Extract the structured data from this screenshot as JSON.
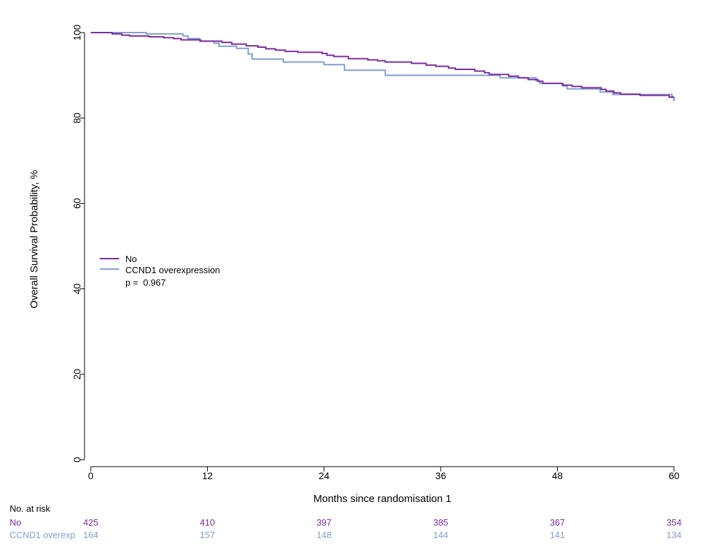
{
  "chart_data": {
    "type": "line",
    "subtype": "kaplan-meier",
    "title": "",
    "xlabel": "Months since randomisation 1",
    "ylabel": "Overall Survival Probability, %",
    "xlim": [
      0,
      60
    ],
    "ylim": [
      0,
      100
    ],
    "x_ticks": [
      "0",
      "12",
      "24",
      "36",
      "48",
      "60"
    ],
    "y_ticks": [
      "0",
      "20",
      "40",
      "60",
      "80",
      "100"
    ],
    "grid": false,
    "legend_position": "center-left",
    "p_value_text": "p =  0.967",
    "colors": {
      "no": "#7a2a9e",
      "ccnd1": "#7f9fcf"
    },
    "series": [
      {
        "name": "No",
        "color": "#7a2a9e",
        "points": [
          [
            0,
            100
          ],
          [
            2.2,
            99.7
          ],
          [
            3.2,
            99.4
          ],
          [
            4,
            99.2
          ],
          [
            6,
            99.0
          ],
          [
            7.5,
            98.8
          ],
          [
            8.5,
            98.6
          ],
          [
            9.3,
            98.3
          ],
          [
            11.3,
            98.0
          ],
          [
            13.5,
            97.7
          ],
          [
            14.5,
            97.3
          ],
          [
            16,
            96.9
          ],
          [
            17.2,
            96.6
          ],
          [
            18,
            96.2
          ],
          [
            19,
            95.9
          ],
          [
            20,
            95.6
          ],
          [
            21.3,
            95.4
          ],
          [
            23.8,
            95.1
          ],
          [
            24.3,
            94.7
          ],
          [
            25,
            94.4
          ],
          [
            26.5,
            93.9
          ],
          [
            28.5,
            93.6
          ],
          [
            29.5,
            93.4
          ],
          [
            30.3,
            93.1
          ],
          [
            33,
            92.8
          ],
          [
            34.5,
            92.4
          ],
          [
            35.5,
            92.1
          ],
          [
            36.8,
            91.7
          ],
          [
            37.5,
            91.4
          ],
          [
            39.5,
            91.0
          ],
          [
            40.5,
            90.6
          ],
          [
            41,
            90.2
          ],
          [
            43,
            89.8
          ],
          [
            44,
            89.4
          ],
          [
            45,
            89.0
          ],
          [
            46,
            88.6
          ],
          [
            46.5,
            88.1
          ],
          [
            48.5,
            87.7
          ],
          [
            49.5,
            87.4
          ],
          [
            50.5,
            87.1
          ],
          [
            52.5,
            86.7
          ],
          [
            53,
            86.3
          ],
          [
            53.8,
            85.9
          ],
          [
            54.5,
            85.6
          ],
          [
            56.5,
            85.3
          ],
          [
            59.5,
            84.9
          ],
          [
            60,
            84.9
          ]
        ],
        "at_risk": [
          "425",
          "410",
          "397",
          "385",
          "367",
          "354"
        ]
      },
      {
        "name": "CCND1 overexpression",
        "color": "#7f9fcf",
        "points": [
          [
            0,
            100
          ],
          [
            5.7,
            99.7
          ],
          [
            9.5,
            99.2
          ],
          [
            10,
            98.6
          ],
          [
            11.2,
            98.0
          ],
          [
            12.7,
            97.5
          ],
          [
            13.2,
            96.8
          ],
          [
            15,
            96.3
          ],
          [
            16.2,
            95.0
          ],
          [
            16.6,
            93.8
          ],
          [
            19.8,
            93.1
          ],
          [
            24,
            92.5
          ],
          [
            26.1,
            91.2
          ],
          [
            30.3,
            90.0
          ],
          [
            40.5,
            90.0
          ],
          [
            42.1,
            89.4
          ],
          [
            45.8,
            88.7
          ],
          [
            46.2,
            88.1
          ],
          [
            48.6,
            87.5
          ],
          [
            49.0,
            86.8
          ],
          [
            52.4,
            86.1
          ],
          [
            53.7,
            85.5
          ],
          [
            59.8,
            84.8
          ],
          [
            60,
            83.9
          ]
        ],
        "at_risk": [
          "164",
          "157",
          "148",
          "144",
          "141",
          "134"
        ]
      }
    ]
  },
  "risk_table": {
    "title": "No. at risk",
    "row_labels": [
      "No",
      "CCND1 overexp"
    ]
  }
}
